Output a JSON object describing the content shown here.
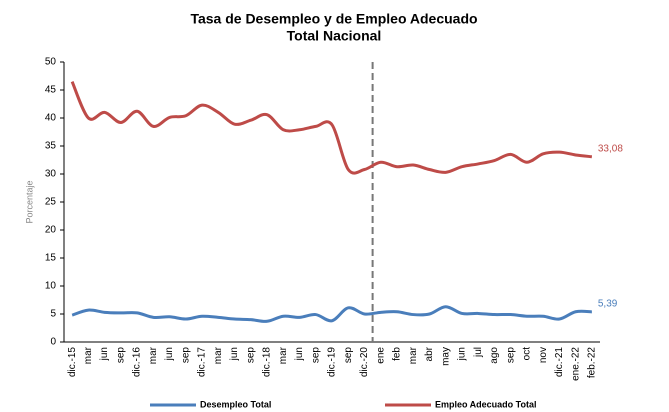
{
  "chart_data": {
    "type": "line",
    "title": "Tasa de Desempleo y de Empleo Adecuado",
    "subtitle": "Total Nacional",
    "y_label": "Porcentaje",
    "categories": [
      "dic.-15",
      "mar",
      "jun",
      "sep",
      "dic.-16",
      "mar",
      "jun",
      "sep",
      "dic.-17",
      "mar",
      "jun",
      "sep",
      "dic.-18",
      "mar",
      "jun",
      "sep",
      "dic.-19",
      "sep",
      "dic.-20",
      "ene",
      "feb",
      "mar",
      "abr",
      "may",
      "jun",
      "jul",
      "ago",
      "sep",
      "oct",
      "nov",
      "dic.-21",
      "ene.-22",
      "feb.-22"
    ],
    "series": [
      {
        "name": "Desempleo Total",
        "color": "#4a7ebb",
        "values": [
          4.8,
          5.7,
          5.3,
          5.2,
          5.2,
          4.4,
          4.5,
          4.1,
          4.6,
          4.4,
          4.1,
          4.0,
          3.7,
          4.6,
          4.4,
          4.9,
          3.8,
          6.1,
          5.0,
          5.3,
          5.4,
          4.9,
          5.0,
          6.3,
          5.1,
          5.1,
          4.9,
          4.9,
          4.6,
          4.6,
          4.1,
          5.4,
          5.39
        ],
        "value_labels": [
          null,
          null,
          null,
          null,
          null,
          null,
          null,
          null,
          null,
          null,
          null,
          null,
          null,
          null,
          null,
          null,
          null,
          null,
          null,
          null,
          null,
          null,
          null,
          null,
          null,
          null,
          null,
          null,
          null,
          null,
          null,
          null,
          "5,39"
        ]
      },
      {
        "name": "Empleo Adecuado Total",
        "color": "#be4b48",
        "values": [
          46.5,
          40.0,
          41.0,
          39.2,
          41.2,
          38.5,
          40.1,
          40.4,
          42.3,
          41.0,
          38.9,
          39.6,
          40.6,
          37.9,
          37.9,
          38.5,
          38.8,
          30.8,
          30.8,
          32.1,
          31.3,
          31.6,
          30.8,
          30.3,
          31.3,
          31.8,
          32.4,
          33.5,
          32.1,
          33.6,
          33.9,
          33.4,
          33.08
        ],
        "value_labels": [
          null,
          null,
          null,
          null,
          null,
          null,
          null,
          null,
          null,
          null,
          null,
          null,
          null,
          null,
          null,
          null,
          null,
          null,
          null,
          null,
          null,
          null,
          null,
          null,
          null,
          null,
          null,
          null,
          null,
          null,
          null,
          null,
          "33,08"
        ]
      }
    ],
    "ylim": [
      0,
      50
    ],
    "yticks": [
      0,
      5,
      10,
      15,
      20,
      25,
      30,
      35,
      40,
      45,
      50
    ],
    "grid": false,
    "legend": "bottom"
  }
}
